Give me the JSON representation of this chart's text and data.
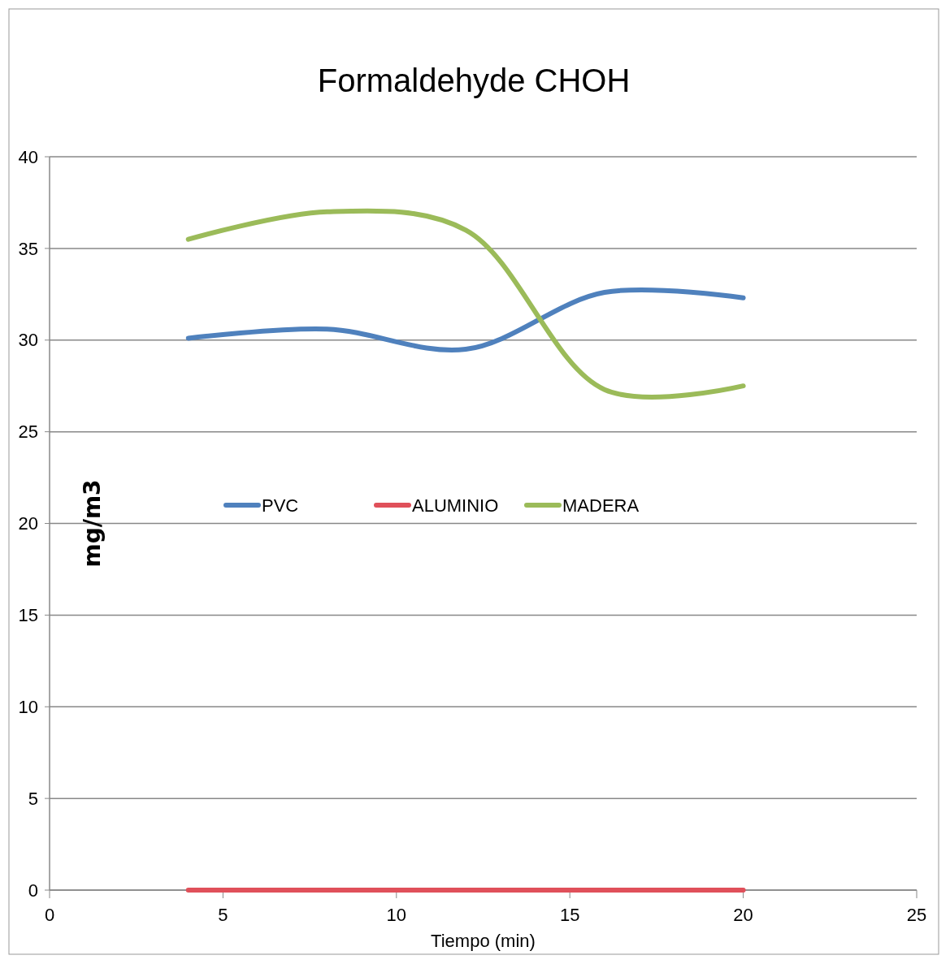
{
  "chart_data": {
    "type": "line",
    "title": "Formaldehyde CHOH",
    "xlabel": "Tiempo (min)",
    "ylabel": "mg/m3",
    "x": [
      4,
      8,
      12,
      16,
      20
    ],
    "series": [
      {
        "name": "PVC",
        "color": "#4f81bd",
        "values": [
          30.1,
          30.6,
          29.5,
          32.6,
          32.3
        ]
      },
      {
        "name": "ALUMINIO",
        "color": "#e0505a",
        "values": [
          0,
          0,
          0,
          0,
          0
        ]
      },
      {
        "name": "MADERA",
        "color": "#9bbb59",
        "values": [
          35.5,
          37,
          36,
          27.3,
          27.5
        ]
      }
    ],
    "xlim": [
      0,
      25
    ],
    "xticks": [
      0,
      5,
      10,
      15,
      20,
      25
    ],
    "ylim": [
      0,
      40
    ],
    "yticks": [
      0,
      5,
      10,
      15,
      20,
      25,
      30,
      35,
      40
    ],
    "grid": "y",
    "legend": "left",
    "marker": "none",
    "line_style": "solid"
  }
}
